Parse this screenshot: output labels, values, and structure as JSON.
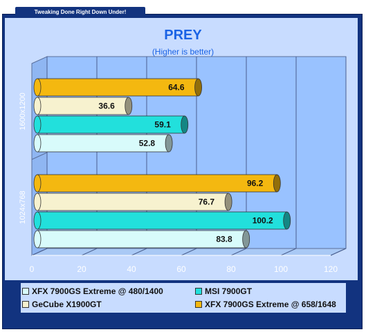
{
  "header": {
    "tab_label": "Tweaking Done Right Down Under!"
  },
  "chart_data": {
    "type": "bar",
    "orientation": "horizontal",
    "title": "PREY",
    "subtitle": "(Higher is better)",
    "categories": [
      "1600x1200",
      "1024x768"
    ],
    "xlim": [
      0,
      120
    ],
    "xticks": [
      0,
      20,
      40,
      60,
      80,
      100,
      120
    ],
    "grid": true,
    "legend_position": "bottom",
    "series": [
      {
        "name": "XFX 7900GS Extreme @ 480/1400",
        "color": "#d8fbfb",
        "values": [
          52.8,
          83.8
        ]
      },
      {
        "name": "MSI 7900GT",
        "color": "#22e0dc",
        "values": [
          59.1,
          100.2
        ]
      },
      {
        "name": "GeCube X1900GT",
        "color": "#f7f2cf",
        "values": [
          36.6,
          76.7
        ]
      },
      {
        "name": "XFX 7900GS Extreme @ 658/1648",
        "color": "#f4b810",
        "values": [
          64.6,
          96.2
        ]
      }
    ]
  }
}
